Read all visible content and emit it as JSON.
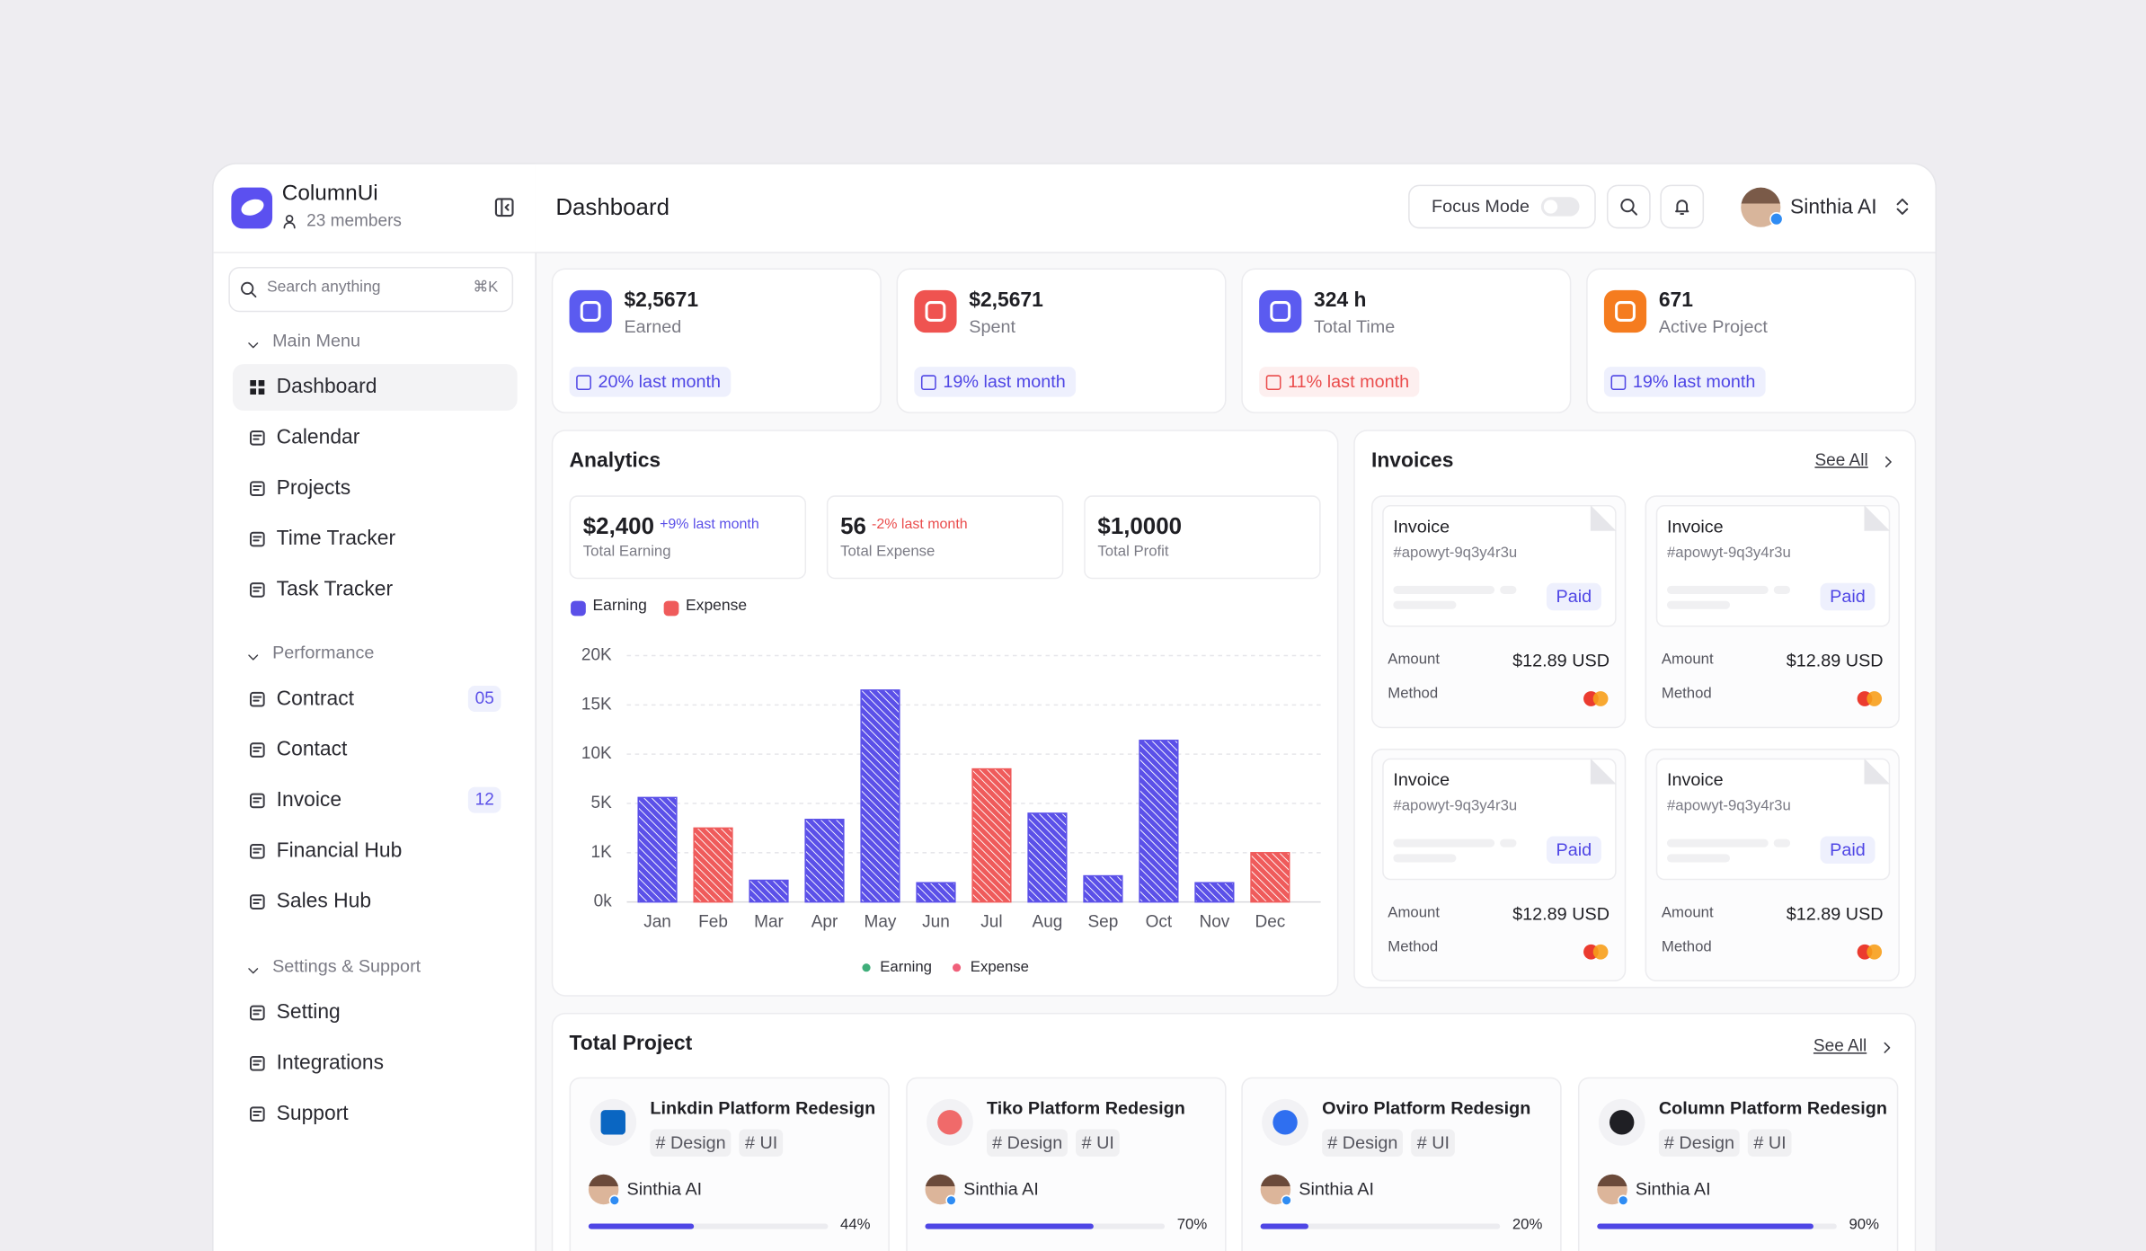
{
  "sidebar": {
    "brand": "ColumnUi",
    "members": "23 members",
    "search": "Search anything",
    "shortcut": "⌘K",
    "groups": [
      {
        "title": "Main Menu",
        "items": [
          {
            "label": "Dashboard"
          },
          {
            "label": "Calendar"
          },
          {
            "label": "Projects"
          },
          {
            "label": "Time Tracker"
          },
          {
            "label": "Task Tracker"
          }
        ]
      },
      {
        "title": "Performance",
        "items": [
          {
            "label": "Contract",
            "badge": "05"
          },
          {
            "label": "Contact"
          },
          {
            "label": "Invoice",
            "badge": "12"
          },
          {
            "label": "Financial Hub"
          },
          {
            "label": "Sales Hub"
          }
        ]
      },
      {
        "title": "Settings & Support",
        "items": [
          {
            "label": "Setting"
          },
          {
            "label": "Integrations"
          },
          {
            "label": "Support"
          }
        ]
      }
    ]
  },
  "header": {
    "title": "Dashboard",
    "focus_mode": "Focus Mode",
    "user": "Sinthia AI"
  },
  "stats": [
    {
      "value": "$2,5671",
      "label": "Earned",
      "change": "20% last month"
    },
    {
      "value": "$2,5671",
      "label": "Spent",
      "change": "19% last month"
    },
    {
      "value": "324 h",
      "label": "Total Time",
      "change": "11% last month"
    },
    {
      "value": "671",
      "label": "Active Project",
      "change": "19% last month"
    }
  ],
  "analytics": {
    "title": "Analytics",
    "summary": [
      {
        "value": "$2,400",
        "change": "+9% last month",
        "label": "Total Earning"
      },
      {
        "value": "56",
        "change": "-2% last month",
        "label": "Total Expense"
      },
      {
        "value": "$1,0000",
        "label": "Total Profit"
      }
    ],
    "chart": {
      "type": "bar",
      "categories": [
        "Jan",
        "Feb",
        "Mar",
        "Apr",
        "May",
        "Jun",
        "Jul",
        "Aug",
        "Sep",
        "Oct",
        "Nov",
        "Dec"
      ],
      "series": [
        {
          "name": "Earning",
          "color": "#5b50e8",
          "values": [
            5.6,
            null,
            0.44,
            3.7,
            16.5,
            0.39,
            null,
            4.2,
            0.53,
            11.4,
            0.39,
            null
          ]
        },
        {
          "name": "Expense",
          "color": "#ef5b5b",
          "values": [
            null,
            3,
            null,
            null,
            null,
            null,
            8.5,
            null,
            null,
            null,
            null,
            1
          ]
        }
      ],
      "ylim": [
        0,
        20
      ],
      "yticks": [
        {
          "value": 0,
          "label": "0k"
        },
        {
          "value": 1,
          "label": "1K"
        },
        {
          "value": 5,
          "label": "5K"
        },
        {
          "value": 10,
          "label": "10K"
        },
        {
          "value": 15,
          "label": "15K"
        },
        {
          "value": 20,
          "label": "20K"
        }
      ],
      "grid": true
    }
  },
  "invoices": {
    "title": "Invoices",
    "see_all": "See All",
    "cards": [
      {
        "title": "Invoice",
        "id": "#apowyt-9q3y4r3u",
        "status": "Paid",
        "amount_label": "Amount",
        "amount": "$12.89 USD",
        "method_label": "Method"
      },
      {
        "title": "Invoice",
        "id": "#apowyt-9q3y4r3u",
        "status": "Paid",
        "amount_label": "Amount",
        "amount": "$12.89 USD",
        "method_label": "Method"
      },
      {
        "title": "Invoice",
        "id": "#apowyt-9q3y4r3u",
        "status": "Paid",
        "amount_label": "Amount",
        "amount": "$12.89 USD",
        "method_label": "Method"
      },
      {
        "title": "Invoice",
        "id": "#apowyt-9q3y4r3u",
        "status": "Paid",
        "amount_label": "Amount",
        "amount": "$12.89 USD",
        "method_label": "Method"
      }
    ]
  },
  "projects": {
    "title": "Total Project",
    "see_all": "See All",
    "cards": [
      {
        "name": "Linkdin Platform Redesign",
        "tags": [
          "# Design",
          "# UI"
        ],
        "owner": "Sinthia AI",
        "progress": 44,
        "progress_label": "44%"
      },
      {
        "name": "Tiko Platform Redesign",
        "tags": [
          "# Design",
          "# UI"
        ],
        "owner": "Sinthia AI",
        "progress": 70,
        "progress_label": "70%"
      },
      {
        "name": "Oviro Platform Redesign",
        "tags": [
          "# Design",
          "# UI"
        ],
        "owner": "Sinthia AI",
        "progress": 20,
        "progress_label": "20%"
      },
      {
        "name": "Column Platform Redesign",
        "tags": [
          "# Design",
          "# UI"
        ],
        "owner": "Sinthia AI",
        "progress": 90,
        "progress_label": "90%"
      }
    ]
  }
}
